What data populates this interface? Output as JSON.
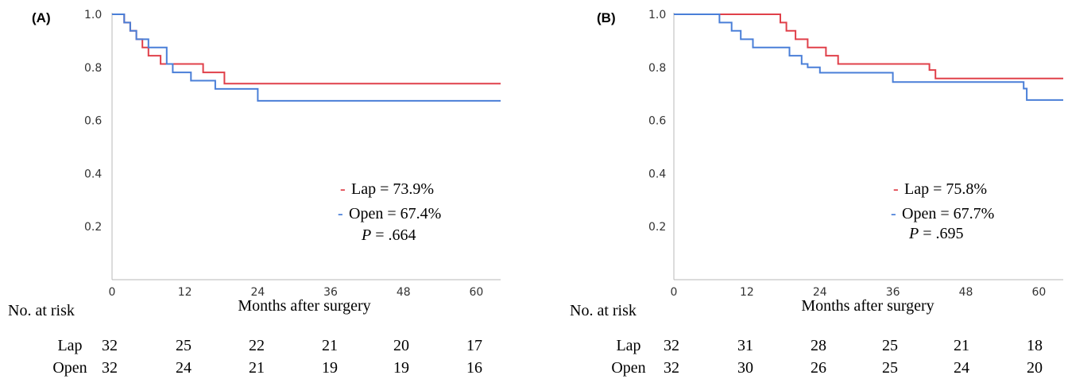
{
  "chart_data": [
    {
      "type": "line",
      "panel_label": "(A)",
      "xlabel": "Months after surgery",
      "ylabel": "",
      "xlim": [
        0,
        64
      ],
      "ylim": [
        0,
        1.0
      ],
      "xticks": [
        "0",
        "12",
        "24",
        "36",
        "48",
        "60"
      ],
      "yticks": [
        "0.2",
        "0.4",
        "0.6",
        "0.8",
        "1.0"
      ],
      "grid": false,
      "series": [
        {
          "name": "Lap",
          "color": "#e0404a",
          "step_x": [
            0,
            2,
            3,
            4,
            5,
            6,
            8,
            10,
            15,
            18.5,
            64
          ],
          "step_y": [
            1.0,
            0.969,
            0.938,
            0.906,
            0.875,
            0.844,
            0.813,
            0.813,
            0.781,
            0.739,
            0.739
          ]
        },
        {
          "name": "Open",
          "color": "#4a7fd8",
          "step_x": [
            0,
            2,
            3,
            4,
            6,
            9,
            10,
            13,
            17,
            24,
            64
          ],
          "step_y": [
            1.0,
            0.969,
            0.938,
            0.906,
            0.875,
            0.813,
            0.781,
            0.75,
            0.719,
            0.674,
            0.674
          ]
        }
      ],
      "legend": [
        {
          "marker": "-",
          "text": "Lap = 73.9%"
        },
        {
          "marker": "-",
          "text": "Open = 67.4%"
        }
      ],
      "pvalue": {
        "label": "P",
        "text": " = .664"
      },
      "risk_table": {
        "title": "No. at risk",
        "rows": [
          {
            "label": "Lap",
            "values": [
              "32",
              "25",
              "22",
              "21",
              "20",
              "17"
            ]
          },
          {
            "label": "Open",
            "values": [
              "32",
              "24",
              "21",
              "19",
              "19",
              "16"
            ]
          }
        ]
      }
    },
    {
      "type": "line",
      "panel_label": "(B)",
      "xlabel": "Months after surgery",
      "ylabel": "",
      "xlim": [
        0,
        64
      ],
      "ylim": [
        0,
        1.0
      ],
      "xticks": [
        "0",
        "12",
        "24",
        "36",
        "48",
        "60"
      ],
      "yticks": [
        "0.2",
        "0.4",
        "0.6",
        "0.8",
        "1.0"
      ],
      "grid": false,
      "series": [
        {
          "name": "Lap",
          "color": "#e0404a",
          "step_x": [
            0,
            17.5,
            18.5,
            20,
            22,
            25,
            27,
            42,
            43,
            64
          ],
          "step_y": [
            1.0,
            0.969,
            0.938,
            0.906,
            0.875,
            0.844,
            0.813,
            0.79,
            0.758,
            0.758
          ]
        },
        {
          "name": "Open",
          "color": "#4a7fd8",
          "step_x": [
            0,
            7.5,
            9.5,
            11,
            13,
            19,
            21,
            22,
            24,
            36,
            57.5,
            58,
            64
          ],
          "step_y": [
            1.0,
            0.969,
            0.938,
            0.906,
            0.875,
            0.844,
            0.813,
            0.8,
            0.78,
            0.745,
            0.72,
            0.677,
            0.677
          ]
        }
      ],
      "legend": [
        {
          "marker": "-",
          "text": "Lap = 75.8%"
        },
        {
          "marker": "-",
          "text": "Open = 67.7%"
        }
      ],
      "pvalue": {
        "label": "P",
        "text": " = .695"
      },
      "risk_table": {
        "title": "No. at risk",
        "rows": [
          {
            "label": "Lap",
            "values": [
              "32",
              "31",
              "28",
              "25",
              "21",
              "18"
            ]
          },
          {
            "label": "Open",
            "values": [
              "32",
              "30",
              "26",
              "25",
              "24",
              "20"
            ]
          }
        ]
      }
    }
  ]
}
